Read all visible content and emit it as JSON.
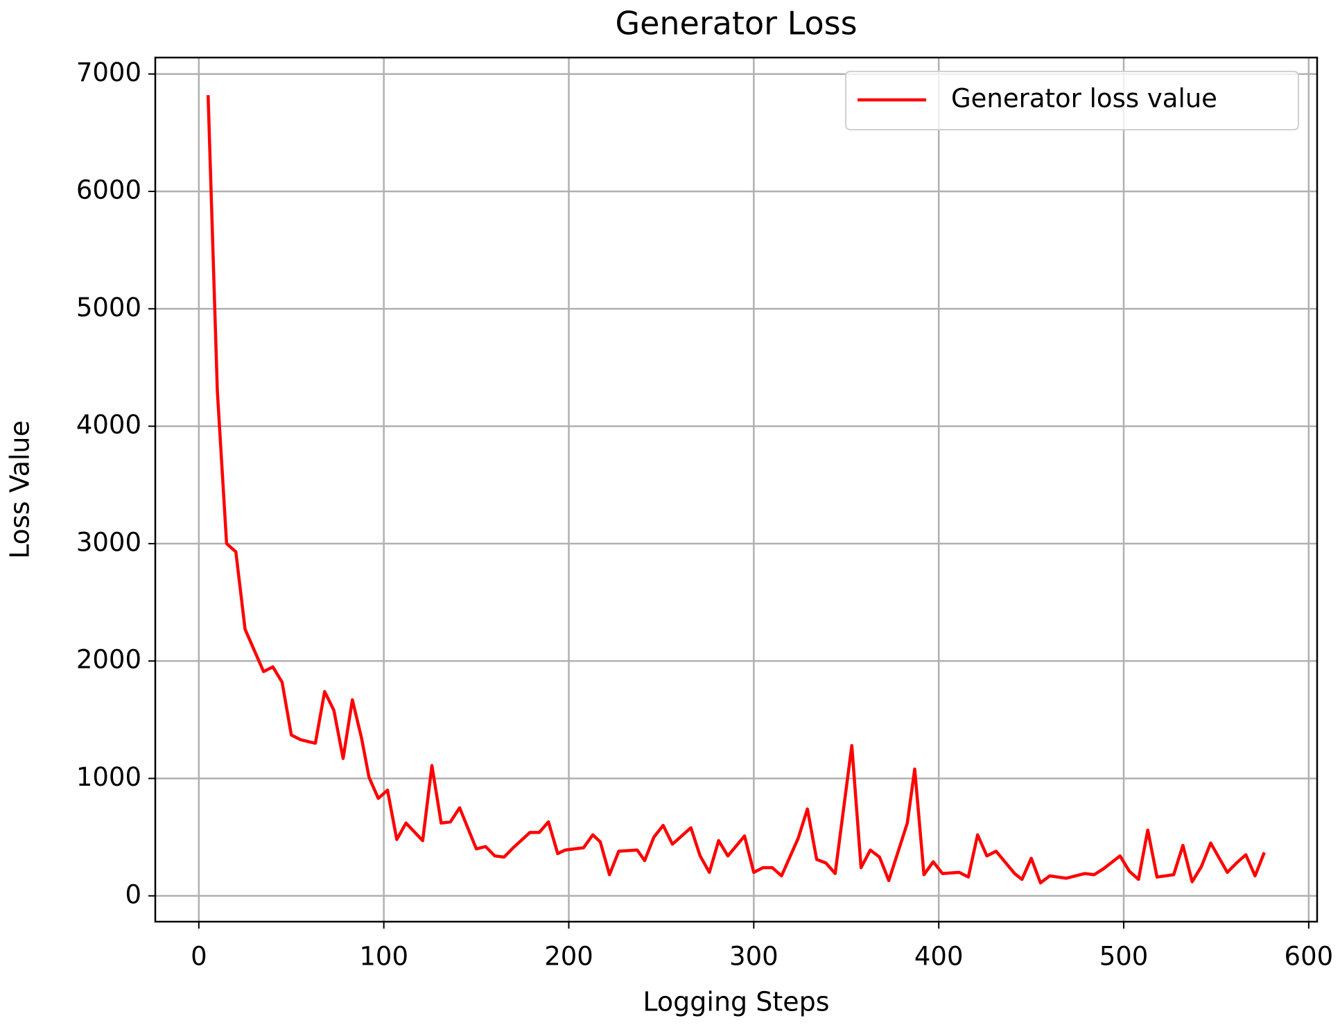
{
  "chart_data": {
    "type": "line",
    "title": "Generator Loss",
    "x_label": "Logging Steps",
    "y_label": "Loss Value",
    "xlim": [
      -23.55,
      604.55
    ],
    "ylim": [
      -220,
      7140
    ],
    "xticks": [
      0,
      100,
      200,
      300,
      400,
      500,
      600
    ],
    "yticks": [
      0,
      1000,
      2000,
      3000,
      4000,
      5000,
      6000,
      7000
    ],
    "grid": true,
    "legend": "upper right",
    "x": [
      5,
      10,
      15,
      20,
      25,
      30,
      35,
      40,
      45,
      50,
      55,
      60,
      63,
      68,
      73,
      78,
      83,
      88,
      92,
      97,
      102,
      107,
      112,
      121,
      126,
      131,
      136,
      141,
      150,
      155,
      160,
      165,
      170,
      179,
      184,
      189,
      194,
      198,
      208,
      213,
      217,
      222,
      227,
      237,
      241,
      246,
      251,
      256,
      266,
      271,
      276,
      281,
      286,
      295,
      300,
      305,
      310,
      315,
      324,
      329,
      334,
      339,
      344,
      353,
      358,
      363,
      368,
      373,
      383,
      387,
      392,
      397,
      402,
      411,
      416,
      421,
      426,
      431,
      441,
      445,
      450,
      455,
      460,
      469,
      479,
      484,
      489,
      498,
      503,
      508,
      513,
      518,
      527,
      532,
      537,
      542,
      547,
      556,
      561,
      566,
      571,
      576
    ],
    "series": [
      {
        "name": "Generator loss value",
        "color": "#ff0000",
        "values": [
          6820,
          4300,
          3000,
          2930,
          2270,
          2090,
          1910,
          1950,
          1820,
          1370,
          1330,
          1310,
          1300,
          1740,
          1580,
          1170,
          1670,
          1340,
          1010,
          830,
          900,
          480,
          620,
          470,
          1110,
          620,
          630,
          750,
          400,
          420,
          340,
          330,
          410,
          540,
          540,
          630,
          360,
          390,
          410,
          520,
          460,
          180,
          380,
          390,
          300,
          500,
          600,
          440,
          580,
          340,
          200,
          470,
          340,
          510,
          200,
          240,
          240,
          170,
          490,
          740,
          310,
          280,
          190,
          1280,
          240,
          390,
          330,
          130,
          620,
          1080,
          180,
          290,
          190,
          200,
          160,
          520,
          340,
          380,
          190,
          140,
          320,
          110,
          170,
          150,
          190,
          180,
          230,
          340,
          210,
          140,
          560,
          160,
          180,
          430,
          120,
          250,
          450,
          200,
          280,
          350,
          170,
          370
        ]
      }
    ]
  }
}
